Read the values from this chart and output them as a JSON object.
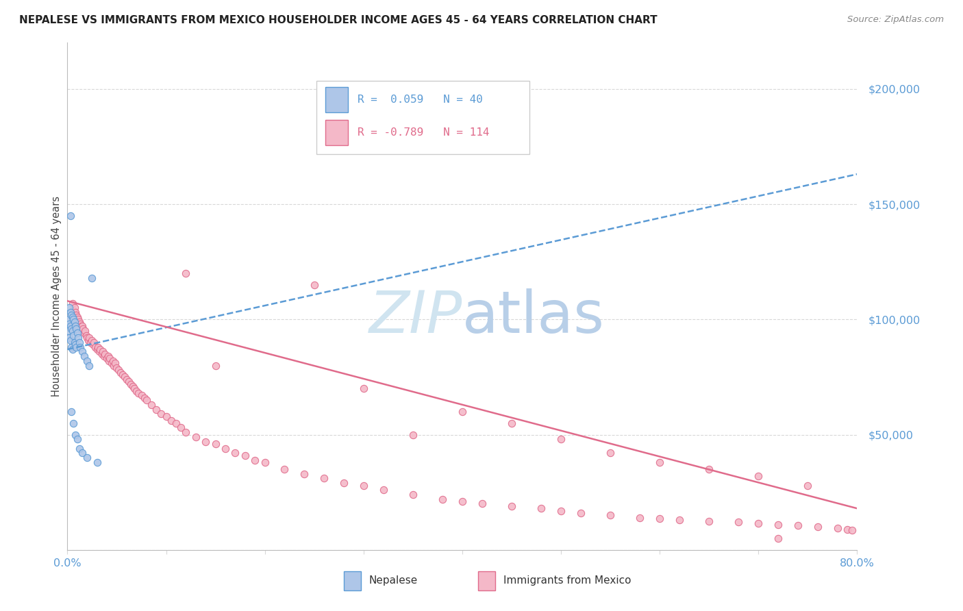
{
  "title": "NEPALESE VS IMMIGRANTS FROM MEXICO HOUSEHOLDER INCOME AGES 45 - 64 YEARS CORRELATION CHART",
  "source": "Source: ZipAtlas.com",
  "ylabel": "Householder Income Ages 45 - 64 years",
  "xlim": [
    0.0,
    0.8
  ],
  "ylim": [
    0,
    220000
  ],
  "yticks": [
    0,
    50000,
    100000,
    150000,
    200000
  ],
  "xticks": [
    0.0,
    0.1,
    0.2,
    0.3,
    0.4,
    0.5,
    0.6,
    0.7,
    0.8
  ],
  "nepalese_fill": "#aec6e8",
  "nepalese_edge": "#5b9bd5",
  "mexico_fill": "#f4b8c8",
  "mexico_edge": "#e06b8b",
  "nep_line_color": "#5b9bd5",
  "mex_line_color": "#e06b8b",
  "watermark_color": "#d0e4f0",
  "ytick_color": "#5b9bd5",
  "xtick_color": "#5b9bd5",
  "grid_color": "#d8d8d8",
  "legend_R_nep": "R =  0.059",
  "legend_N_nep": "N = 40",
  "legend_R_mex": "R = -0.789",
  "legend_N_mex": "N = 114",
  "nep_scatter_x": [
    0.001,
    0.001,
    0.002,
    0.002,
    0.002,
    0.003,
    0.003,
    0.003,
    0.004,
    0.004,
    0.004,
    0.005,
    0.005,
    0.005,
    0.006,
    0.006,
    0.007,
    0.007,
    0.008,
    0.008,
    0.009,
    0.009,
    0.01,
    0.011,
    0.012,
    0.013,
    0.015,
    0.017,
    0.02,
    0.022,
    0.003,
    0.025,
    0.004,
    0.006,
    0.008,
    0.01,
    0.012,
    0.015,
    0.02,
    0.03
  ],
  "nep_scatter_y": [
    100000,
    95000,
    105000,
    98000,
    92000,
    103000,
    97000,
    91000,
    102000,
    96000,
    88000,
    101000,
    95000,
    87000,
    100000,
    93000,
    99000,
    90000,
    97000,
    89000,
    96000,
    88000,
    94000,
    92000,
    90000,
    88000,
    86000,
    84000,
    82000,
    80000,
    145000,
    118000,
    60000,
    55000,
    50000,
    48000,
    44000,
    42000,
    40000,
    38000
  ],
  "mex_scatter_x": [
    0.005,
    0.006,
    0.007,
    0.008,
    0.008,
    0.009,
    0.01,
    0.01,
    0.011,
    0.012,
    0.013,
    0.014,
    0.015,
    0.015,
    0.016,
    0.017,
    0.018,
    0.019,
    0.02,
    0.021,
    0.022,
    0.023,
    0.025,
    0.026,
    0.027,
    0.028,
    0.03,
    0.031,
    0.032,
    0.033,
    0.035,
    0.036,
    0.037,
    0.038,
    0.04,
    0.041,
    0.042,
    0.043,
    0.045,
    0.046,
    0.047,
    0.048,
    0.05,
    0.052,
    0.054,
    0.056,
    0.058,
    0.06,
    0.062,
    0.064,
    0.066,
    0.068,
    0.07,
    0.072,
    0.075,
    0.078,
    0.08,
    0.085,
    0.09,
    0.095,
    0.1,
    0.105,
    0.11,
    0.115,
    0.12,
    0.13,
    0.14,
    0.15,
    0.16,
    0.17,
    0.18,
    0.19,
    0.2,
    0.22,
    0.24,
    0.26,
    0.28,
    0.3,
    0.32,
    0.35,
    0.38,
    0.4,
    0.42,
    0.45,
    0.48,
    0.5,
    0.52,
    0.55,
    0.58,
    0.6,
    0.62,
    0.65,
    0.68,
    0.7,
    0.72,
    0.74,
    0.76,
    0.78,
    0.79,
    0.795,
    0.12,
    0.25,
    0.35,
    0.5,
    0.45,
    0.55,
    0.6,
    0.65,
    0.7,
    0.75,
    0.15,
    0.3,
    0.4,
    0.72
  ],
  "mex_scatter_y": [
    107000,
    104000,
    105000,
    103000,
    100000,
    102000,
    101000,
    98000,
    100000,
    99000,
    98000,
    97000,
    97000,
    95000,
    96000,
    94000,
    95000,
    93000,
    92000,
    91000,
    92000,
    90000,
    91000,
    89000,
    90000,
    88000,
    87000,
    88000,
    86000,
    87000,
    85000,
    86000,
    84000,
    85000,
    83000,
    84000,
    82000,
    83000,
    81000,
    82000,
    80000,
    81000,
    79000,
    78000,
    77000,
    76000,
    75000,
    74000,
    73000,
    72000,
    71000,
    70000,
    69000,
    68000,
    67000,
    66000,
    65000,
    63000,
    61000,
    59000,
    58000,
    56000,
    55000,
    53000,
    51000,
    49000,
    47000,
    46000,
    44000,
    42000,
    41000,
    39000,
    38000,
    35000,
    33000,
    31000,
    29000,
    28000,
    26000,
    24000,
    22000,
    21000,
    20000,
    19000,
    18000,
    17000,
    16000,
    15000,
    14000,
    13500,
    13000,
    12500,
    12000,
    11500,
    11000,
    10500,
    10000,
    9500,
    9000,
    8500,
    120000,
    115000,
    50000,
    48000,
    55000,
    42000,
    38000,
    35000,
    32000,
    28000,
    80000,
    70000,
    60000,
    5000
  ],
  "nep_trendline": [
    0.0,
    0.8,
    87000,
    163000
  ],
  "mex_trendline": [
    0.0,
    0.8,
    108000,
    18000
  ]
}
